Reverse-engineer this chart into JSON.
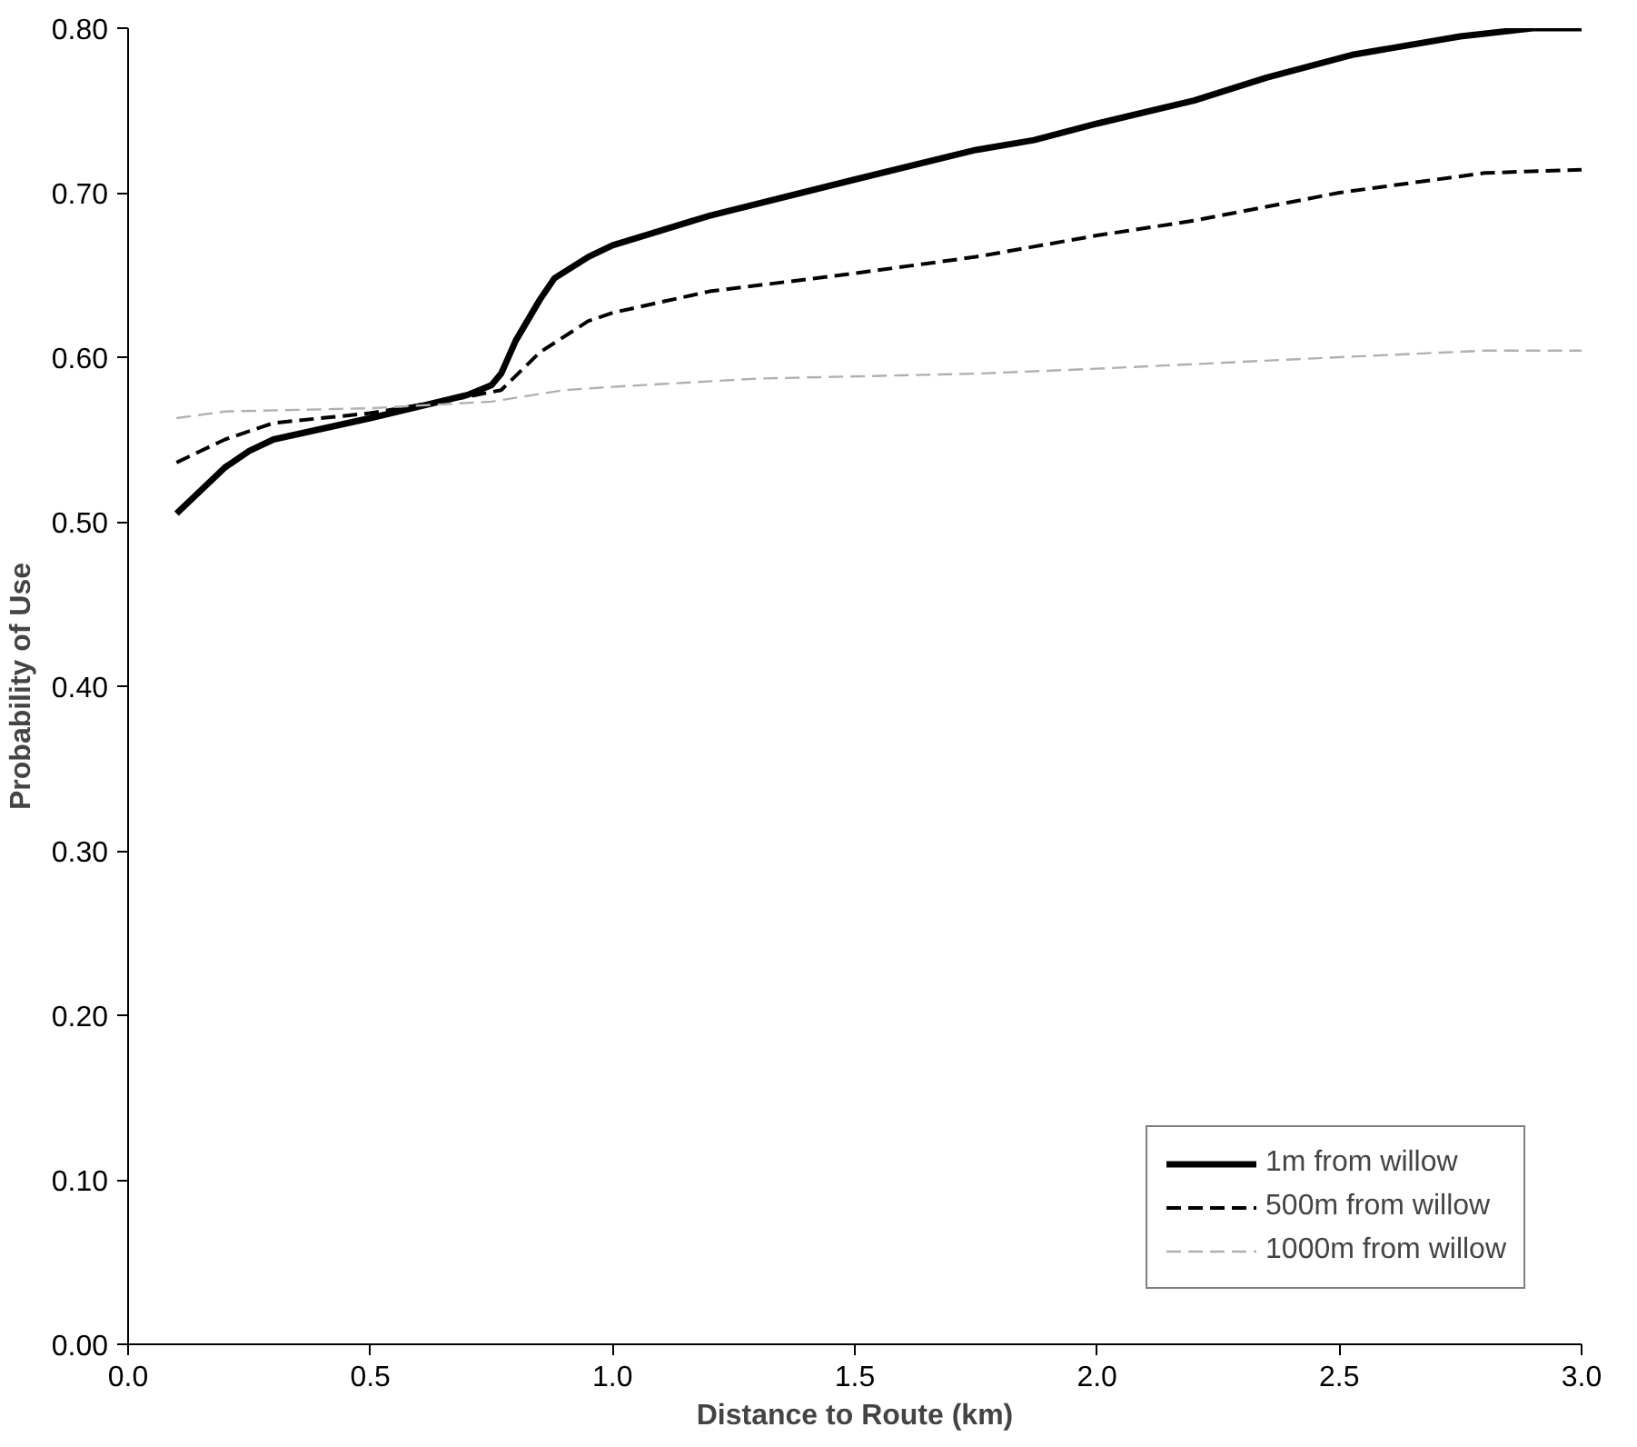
{
  "chart_data": {
    "type": "line",
    "xlabel": "Distance to Route (km)",
    "ylabel": "Probability of Use",
    "xlim": [
      0,
      3
    ],
    "ylim": [
      0,
      0.8
    ],
    "xticks": [
      {
        "value": 0,
        "label": "0.0"
      },
      {
        "value": 0.5,
        "label": "0.5"
      },
      {
        "value": 1,
        "label": "1.0"
      },
      {
        "value": 1.5,
        "label": "1.5"
      },
      {
        "value": 2,
        "label": "2.0"
      },
      {
        "value": 2.5,
        "label": "2.5"
      },
      {
        "value": 3,
        "label": "3.0"
      }
    ],
    "yticks": [
      {
        "value": 0,
        "label": "0.00"
      },
      {
        "value": 0.1,
        "label": "0.10"
      },
      {
        "value": 0.2,
        "label": "0.20"
      },
      {
        "value": 0.3,
        "label": "0.30"
      },
      {
        "value": 0.4,
        "label": "0.40"
      },
      {
        "value": 0.5,
        "label": "0.50"
      },
      {
        "value": 0.6,
        "label": "0.60"
      },
      {
        "value": 0.7,
        "label": "0.70"
      },
      {
        "value": 0.8,
        "label": "0.80"
      }
    ],
    "grid": false,
    "legend": "bottom right",
    "marker": "none",
    "series": [
      {
        "name": "1m from willow",
        "color": "#000000",
        "line_style": "solid",
        "x": [
          0.1,
          0.2,
          0.25,
          0.3,
          0.5,
          0.6,
          0.7,
          0.75,
          0.77,
          0.8,
          0.85,
          0.88,
          0.95,
          1.0,
          1.1,
          1.2,
          1.5,
          1.75,
          1.87,
          2.0,
          2.2,
          2.35,
          2.53,
          2.75,
          2.9,
          3.0
        ],
        "values": [
          0.505,
          0.533,
          0.543,
          0.55,
          0.563,
          0.57,
          0.577,
          0.583,
          0.59,
          0.61,
          0.635,
          0.648,
          0.661,
          0.668,
          0.677,
          0.686,
          0.708,
          0.726,
          0.732,
          0.742,
          0.756,
          0.77,
          0.784,
          0.795,
          0.8,
          0.8
        ]
      },
      {
        "name": "500m from willow",
        "color": "#000000",
        "line_style": "dashed",
        "x": [
          0.1,
          0.2,
          0.3,
          0.5,
          0.7,
          0.77,
          0.85,
          0.95,
          1.0,
          1.2,
          1.5,
          1.75,
          2.0,
          2.2,
          2.5,
          2.8,
          3.0
        ],
        "values": [
          0.536,
          0.55,
          0.56,
          0.566,
          0.576,
          0.58,
          0.603,
          0.622,
          0.627,
          0.64,
          0.651,
          0.661,
          0.674,
          0.683,
          0.7,
          0.712,
          0.714
        ]
      },
      {
        "name": "1000m from willow",
        "color": "#b0b0b0",
        "line_style": "dashed",
        "x": [
          0.1,
          0.2,
          0.5,
          0.75,
          0.9,
          1.0,
          1.3,
          1.75,
          2.0,
          2.5,
          2.8,
          3.0
        ],
        "values": [
          0.563,
          0.567,
          0.569,
          0.573,
          0.58,
          0.582,
          0.587,
          0.59,
          0.593,
          0.6,
          0.604,
          0.604
        ]
      }
    ]
  }
}
